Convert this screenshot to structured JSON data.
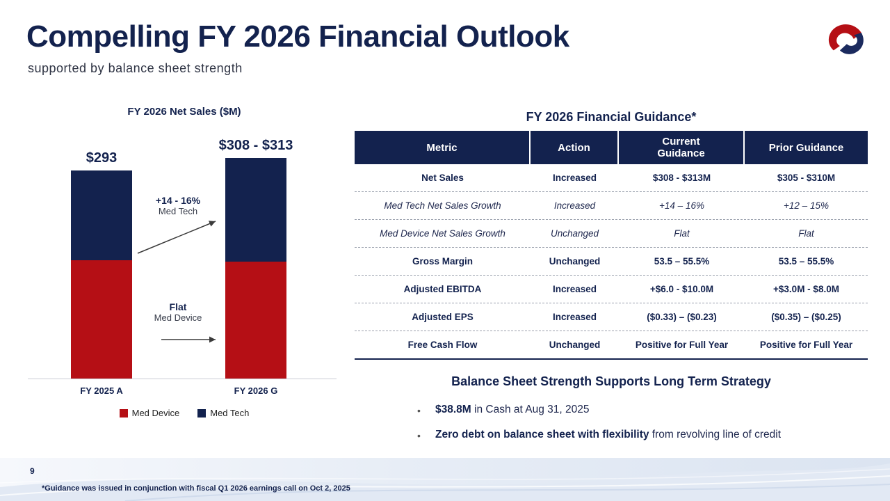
{
  "slide": {
    "title": "Compelling FY 2026 Financial Outlook",
    "subtitle": "supported by balance sheet strength",
    "page_number": "9",
    "footnote": "*Guidance was issued in conjunction with fiscal Q1 2026 earnings call on Oct 2, 2025"
  },
  "colors": {
    "navy": "#13224e",
    "red": "#b50f15",
    "band": "#dbe4f1"
  },
  "chart_data": {
    "type": "bar",
    "stacked": true,
    "title": "FY 2026 Net Sales ($M)",
    "categories": [
      "FY 2025 A",
      "FY 2026 G"
    ],
    "series": [
      {
        "name": "Med Device",
        "color": "#b50f15",
        "values": [
          167,
          165
        ]
      },
      {
        "name": "Med Tech",
        "color": "#13224e",
        "values": [
          126,
          146
        ]
      }
    ],
    "totals": [
      "$293",
      "$308 - $313"
    ],
    "annotations": [
      {
        "line1": "+14 - 16%",
        "line2": "Med Tech"
      },
      {
        "line1": "Flat",
        "line2": "Med Device"
      }
    ],
    "legend_position": "bottom",
    "ylabel": "",
    "xlabel": ""
  },
  "table": {
    "title": "FY 2026 Financial Guidance*",
    "headers": [
      "Metric",
      "Action",
      "Current Guidance",
      "Prior Guidance"
    ],
    "rows": [
      [
        "Net Sales",
        "Increased",
        "$308 - $313M",
        "$305 - $310M"
      ],
      [
        "Med Tech Net Sales Growth",
        "Increased",
        "+14 – 16%",
        "+12 – 15%"
      ],
      [
        "Med Device Net Sales Growth",
        "Unchanged",
        "Flat",
        "Flat"
      ],
      [
        "Gross Margin",
        "Unchanged",
        "53.5 – 55.5%",
        "53.5 – 55.5%"
      ],
      [
        "Adjusted EBITDA",
        "Increased",
        "+$6.0 - $10.0M",
        "+$3.0M - $8.0M"
      ],
      [
        "Adjusted EPS",
        "Increased",
        "($0.33) – ($0.23)",
        "($0.35) – ($0.25)"
      ],
      [
        "Free Cash Flow",
        "Unchanged",
        "Positive for Full Year",
        "Positive for Full Year"
      ]
    ]
  },
  "balance_sheet": {
    "title": "Balance Sheet Strength Supports Long Term Strategy",
    "bullets": [
      {
        "bold": "$38.8M",
        "rest": " in Cash at Aug 31, 2025"
      },
      {
        "bold": "Zero debt on balance sheet with flexibility",
        "rest": " from revolving line of credit"
      }
    ]
  }
}
